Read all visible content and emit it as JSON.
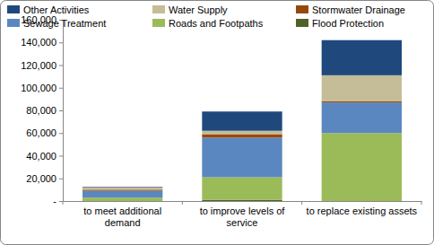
{
  "chart_data": {
    "type": "bar",
    "stacked": true,
    "grid": false,
    "legend": "top",
    "categories": [
      "to meet additional demand",
      "to improve levels of service",
      "to replace existing assets"
    ],
    "series": [
      {
        "name": "Other Activities",
        "color": "#1f497d",
        "values": [
          500,
          17000,
          31000
        ]
      },
      {
        "name": "Water Supply",
        "color": "#c4bd97",
        "values": [
          2000,
          3000,
          23000
        ]
      },
      {
        "name": "Stormwater Drainage",
        "color": "#984807",
        "values": [
          1000,
          3000,
          1000
        ]
      },
      {
        "name": "Sewage Treatment",
        "color": "#5b87c0",
        "values": [
          6000,
          35000,
          27000
        ]
      },
      {
        "name": "Roads and Footpaths",
        "color": "#9bbb59",
        "values": [
          3000,
          20000,
          60000
        ]
      },
      {
        "name": "Flood Protection",
        "color": "#4f6228",
        "values": [
          0,
          1000,
          0
        ]
      }
    ],
    "ylim": [
      0,
      160000
    ],
    "yticks": [
      {
        "value": 0,
        "label": "-"
      },
      {
        "value": 20000,
        "label": "20,000"
      },
      {
        "value": 40000,
        "label": "40,000"
      },
      {
        "value": 60000,
        "label": "60,000"
      },
      {
        "value": 80000,
        "label": "80,000"
      },
      {
        "value": 100000,
        "label": "100,000"
      },
      {
        "value": 120000,
        "label": "120,000"
      },
      {
        "value": 140000,
        "label": "140,000"
      },
      {
        "value": 160000,
        "label": "160,000"
      }
    ]
  }
}
